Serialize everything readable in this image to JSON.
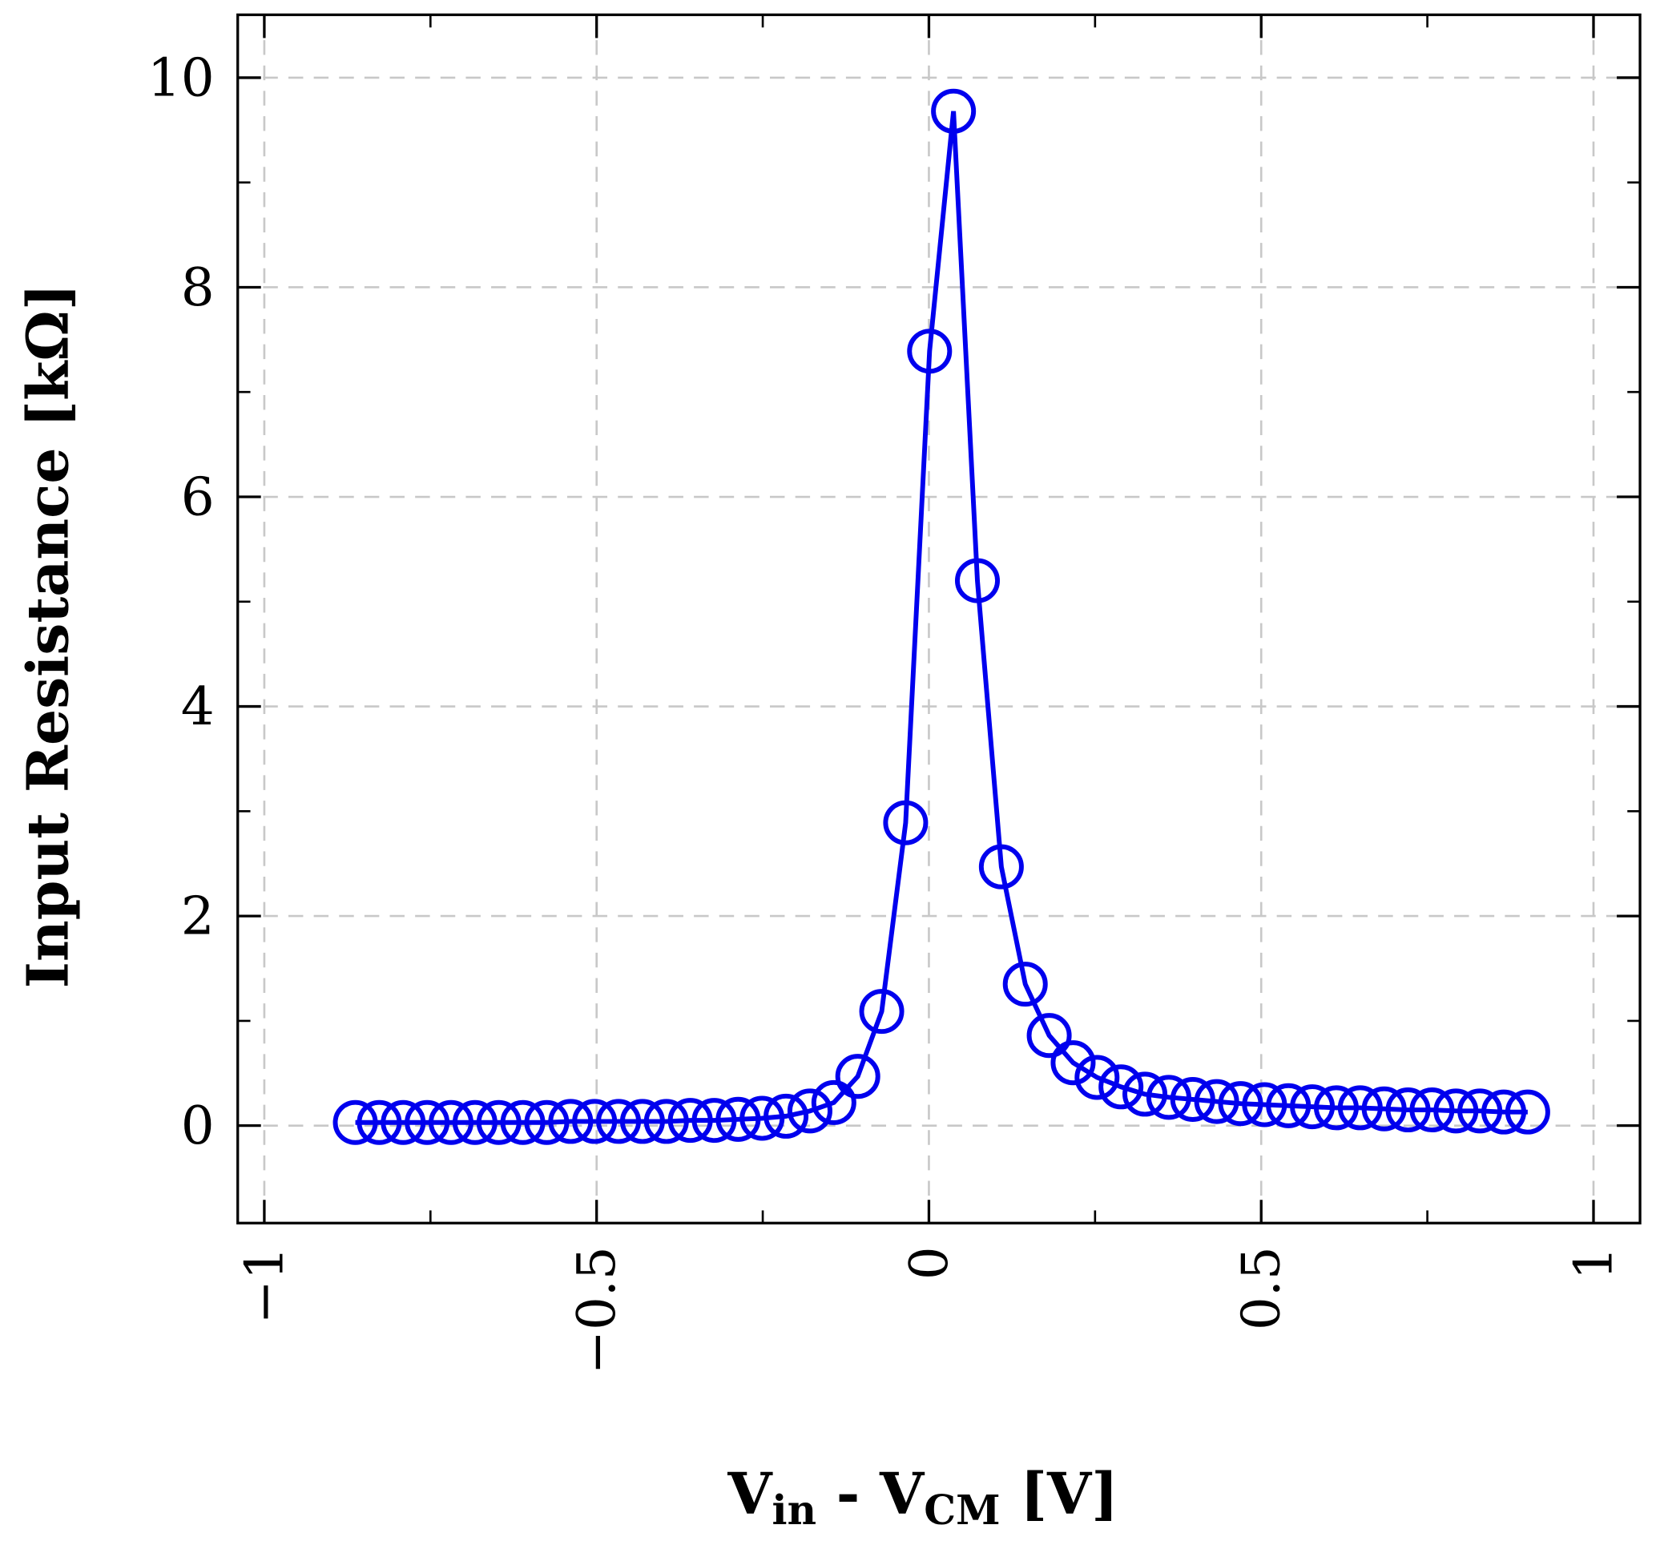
{
  "chart_data": {
    "type": "line",
    "title": "",
    "xlabel": {
      "main": "V",
      "sub1": "in",
      "mid": " - V",
      "sub2": "CM",
      "unit": " [V]"
    },
    "ylabel": "Input Resistance [kΩ]",
    "xlim": [
      -1.04,
      1.07
    ],
    "ylim": [
      -0.93,
      10.6
    ],
    "xticks": [
      -1,
      -0.5,
      0,
      0.5,
      1
    ],
    "xtick_labels": [
      "−1",
      "−0.5",
      "0",
      "0.5",
      "1"
    ],
    "yticks": [
      0,
      2,
      4,
      6,
      8,
      10
    ],
    "ytick_labels": [
      "0",
      "2",
      "4",
      "6",
      "8",
      "10"
    ],
    "grid": true,
    "series": [
      {
        "name": "Input Resistance",
        "color": "#0000ee",
        "marker": "open-circle",
        "x": [
          -0.863,
          -0.827,
          -0.791,
          -0.755,
          -0.719,
          -0.683,
          -0.647,
          -0.611,
          -0.575,
          -0.539,
          -0.503,
          -0.467,
          -0.431,
          -0.395,
          -0.359,
          -0.323,
          -0.287,
          -0.251,
          -0.215,
          -0.179,
          -0.143,
          -0.107,
          -0.071,
          -0.035,
          0.001,
          0.037,
          0.073,
          0.109,
          0.145,
          0.181,
          0.217,
          0.253,
          0.289,
          0.325,
          0.361,
          0.397,
          0.433,
          0.469,
          0.505,
          0.541,
          0.577,
          0.613,
          0.649,
          0.685,
          0.721,
          0.757,
          0.793,
          0.829,
          0.865,
          0.901
        ],
        "y": [
          0.03,
          0.03,
          0.03,
          0.03,
          0.03,
          0.03,
          0.03,
          0.03,
          0.03,
          0.04,
          0.04,
          0.04,
          0.04,
          0.04,
          0.05,
          0.05,
          0.06,
          0.07,
          0.09,
          0.14,
          0.22,
          0.47,
          1.09,
          2.89,
          7.39,
          9.68,
          5.2,
          2.47,
          1.35,
          0.86,
          0.6,
          0.46,
          0.37,
          0.3,
          0.27,
          0.25,
          0.23,
          0.21,
          0.2,
          0.19,
          0.18,
          0.17,
          0.17,
          0.16,
          0.15,
          0.15,
          0.14,
          0.14,
          0.13,
          0.13
        ]
      }
    ]
  }
}
